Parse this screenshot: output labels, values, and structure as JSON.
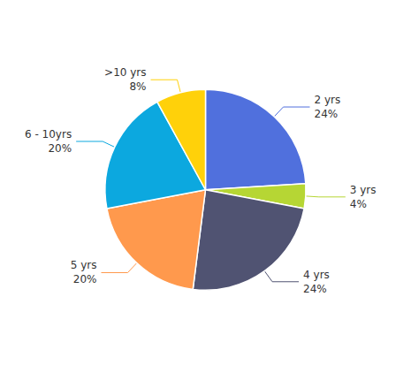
{
  "chart_data": {
    "type": "pie",
    "categories": [
      "2 yrs",
      "3 yrs",
      "4 yrs",
      "5 yrs",
      "6 - 10yrs",
      ">10 yrs"
    ],
    "values": [
      24,
      4,
      24,
      20,
      20,
      8
    ],
    "value_labels": [
      "24%",
      "4%",
      "24%",
      "20%",
      "20%",
      "8%"
    ],
    "data_labels": true
  }
}
